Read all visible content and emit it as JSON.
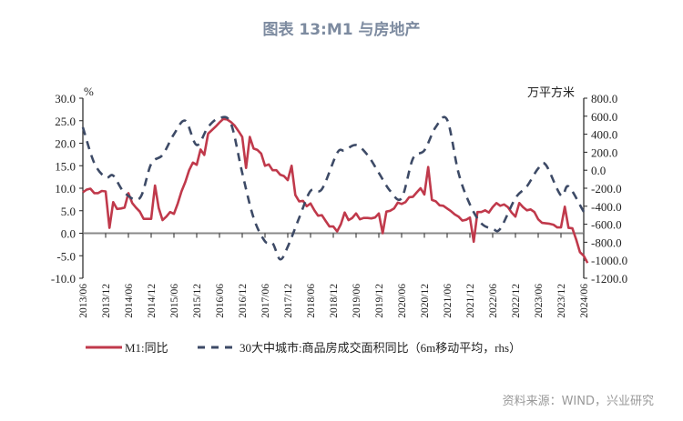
{
  "title": "图表 13:M1 与房地产",
  "source": "资料来源：WIND，兴业研究",
  "chart_data": {
    "type": "line",
    "title": "图表 13:M1 与房地产",
    "left_unit": "%",
    "right_unit": "万平方米",
    "left_ylim": [
      -10,
      30
    ],
    "right_ylim": [
      -1200,
      800
    ],
    "left_ticks": [
      "30.0",
      "25.0",
      "20.0",
      "15.0",
      "10.0",
      "5.0",
      "0.0",
      "-5.0",
      "-10.0"
    ],
    "right_ticks": [
      "800.0",
      "600.0",
      "400.0",
      "200.0",
      "0.0",
      "-200.0",
      "-400.0",
      "-600.0",
      "-800.0",
      "-1000.0",
      "-1200.0"
    ],
    "x_ticks": [
      "2013/06",
      "2013/12",
      "2014/06",
      "2014/12",
      "2015/06",
      "2015/12",
      "2016/06",
      "2016/12",
      "2017/06",
      "2017/12",
      "2018/06",
      "2018/12",
      "2019/06",
      "2019/12",
      "2020/06",
      "2020/12",
      "2021/06",
      "2021/12",
      "2022/06",
      "2022/12",
      "2023/06",
      "2023/12",
      "2024/06"
    ],
    "legend_position": "bottom",
    "grid": false,
    "colors": {
      "m1": "#c0394b",
      "housing": "#3d4a66",
      "title": "#7d8ba0"
    },
    "series": [
      {
        "name": "M1:同比",
        "axis": "left",
        "start": "2013/06",
        "frequency": "monthly",
        "values": [
          9.1,
          9.7,
          9.9,
          8.9,
          8.9,
          9.4,
          9.3,
          1.2,
          6.9,
          5.4,
          5.5,
          5.7,
          8.9,
          6.7,
          5.7,
          4.8,
          3.2,
          3.2,
          3.2,
          10.6,
          5.6,
          2.9,
          3.7,
          4.7,
          4.3,
          6.6,
          9.3,
          11.4,
          14.0,
          15.7,
          15.2,
          18.6,
          17.4,
          22.1,
          22.9,
          23.7,
          24.6,
          25.4,
          25.3,
          24.7,
          23.9,
          22.7,
          21.4,
          14.5,
          21.4,
          18.8,
          18.5,
          17.7,
          15.0,
          15.3,
          14.0,
          14.0,
          13.0,
          12.7,
          11.8,
          15.0,
          8.5,
          7.1,
          7.2,
          6.0,
          6.6,
          5.1,
          3.9,
          4.0,
          2.7,
          1.5,
          1.5,
          0.4,
          2.0,
          4.6,
          2.9,
          3.4,
          4.4,
          3.1,
          3.4,
          3.4,
          3.3,
          3.5,
          4.4,
          0.0,
          4.8,
          5.0,
          5.5,
          6.8,
          6.5,
          6.9,
          8.0,
          8.1,
          9.1,
          10.0,
          8.6,
          14.7,
          7.4,
          7.1,
          6.2,
          6.1,
          5.5,
          4.9,
          4.2,
          3.7,
          2.8,
          3.0,
          3.5,
          -1.9,
          4.7,
          4.7,
          5.1,
          4.6,
          5.8,
          6.7,
          6.1,
          6.4,
          5.8,
          4.6,
          3.7,
          6.7,
          5.8,
          5.1,
          5.3,
          4.7,
          3.1,
          2.3,
          2.2,
          2.1,
          1.9,
          1.3,
          1.3,
          5.9,
          1.2,
          1.1,
          -1.4,
          -4.2,
          -5.0,
          -6.6
        ]
      },
      {
        "name": "30大中城市:商品房成交面积同比（6m移动平均，rhs）",
        "axis": "right",
        "points": [
          [
            "2013/06",
            477
          ],
          [
            "2013/09",
            80
          ],
          [
            "2013/12",
            -80
          ],
          [
            "2014/02",
            -60
          ],
          [
            "2014/05",
            -250
          ],
          [
            "2014/09",
            -310
          ],
          [
            "2014/12",
            70
          ],
          [
            "2015/03",
            170
          ],
          [
            "2015/06",
            400
          ],
          [
            "2015/09",
            550
          ],
          [
            "2015/12",
            280
          ],
          [
            "2016/03",
            480
          ],
          [
            "2016/06",
            580
          ],
          [
            "2016/09",
            520
          ],
          [
            "2016/12",
            -30
          ],
          [
            "2017/03",
            -530
          ],
          [
            "2017/06",
            -790
          ],
          [
            "2017/08",
            -810
          ],
          [
            "2017/10",
            -990
          ],
          [
            "2017/12",
            -850
          ],
          [
            "2018/03",
            -530
          ],
          [
            "2018/06",
            -230
          ],
          [
            "2018/09",
            -210
          ],
          [
            "2019/01",
            190
          ],
          [
            "2019/03",
            220
          ],
          [
            "2019/06",
            280
          ],
          [
            "2019/09",
            170
          ],
          [
            "2019/12",
            -30
          ],
          [
            "2020/03",
            -230
          ],
          [
            "2020/06",
            -310
          ],
          [
            "2020/09",
            130
          ],
          [
            "2020/12",
            220
          ],
          [
            "2021/03",
            480
          ],
          [
            "2021/06",
            560
          ],
          [
            "2021/09",
            -30
          ],
          [
            "2021/12",
            -380
          ],
          [
            "2022/03",
            -590
          ],
          [
            "2022/06",
            -650
          ],
          [
            "2022/08",
            -650
          ],
          [
            "2022/12",
            -310
          ],
          [
            "2023/03",
            -180
          ],
          [
            "2023/06",
            20
          ],
          [
            "2023/08",
            60
          ],
          [
            "2023/12",
            -280
          ],
          [
            "2024/02",
            -180
          ],
          [
            "2024/06",
            -460
          ],
          [
            "2024/07",
            -490
          ]
        ]
      }
    ]
  }
}
